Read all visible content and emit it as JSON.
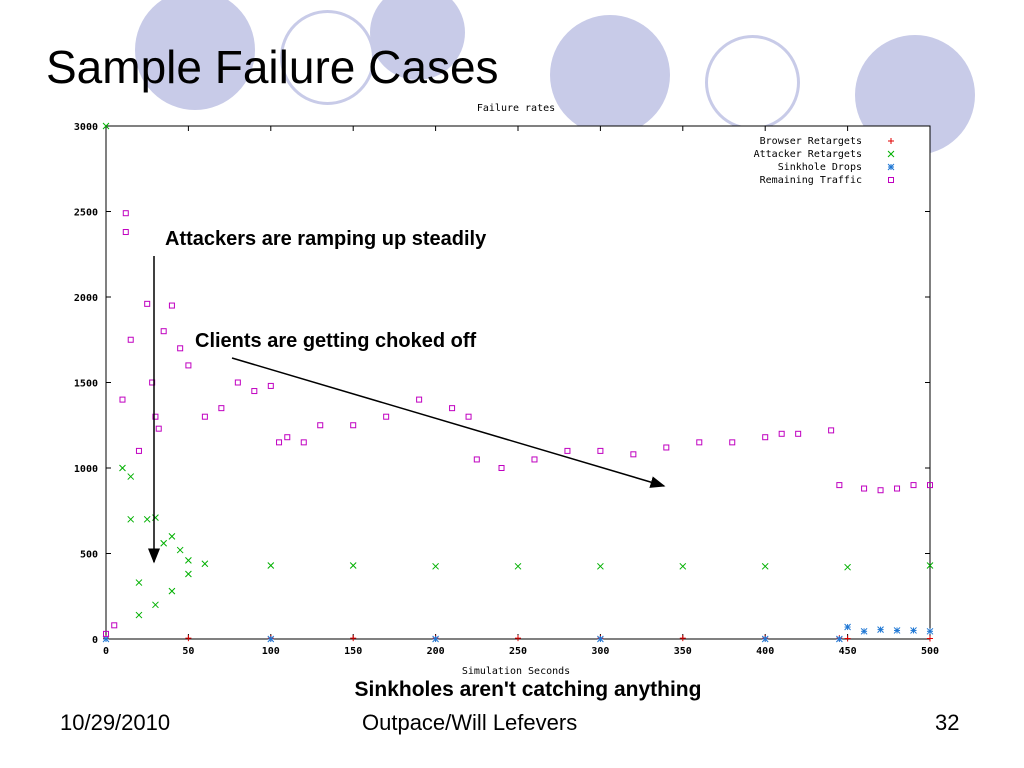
{
  "slide": {
    "title": "Sample Failure Cases",
    "footer_date": "10/29/2010",
    "footer_center": "Outpace/Will Lefevers",
    "footer_page": "32",
    "accent_color": "#c8cbe8"
  },
  "chart_data": {
    "type": "scatter",
    "title": "Failure rates",
    "xlabel": "Simulation Seconds",
    "ylabel": "",
    "xlim": [
      0,
      500
    ],
    "ylim": [
      0,
      3000
    ],
    "xticks": [
      0,
      50,
      100,
      150,
      200,
      250,
      300,
      350,
      400,
      450,
      500
    ],
    "yticks": [
      0,
      500,
      1000,
      1500,
      2000,
      2500,
      3000
    ],
    "legend_position": "top-right",
    "grid": false,
    "series": [
      {
        "name": "Browser Retargets",
        "marker": "+",
        "color": "#e00000",
        "points": [
          [
            0,
            5
          ],
          [
            50,
            5
          ],
          [
            100,
            5
          ],
          [
            150,
            5
          ],
          [
            200,
            5
          ],
          [
            250,
            5
          ],
          [
            300,
            5
          ],
          [
            350,
            5
          ],
          [
            400,
            5
          ],
          [
            445,
            5
          ],
          [
            450,
            3
          ],
          [
            500,
            3
          ]
        ]
      },
      {
        "name": "Attacker Retargets",
        "marker": "x",
        "color": "#00b000",
        "points": [
          [
            0,
            3000
          ],
          [
            10,
            1000
          ],
          [
            15,
            950
          ],
          [
            15,
            700
          ],
          [
            20,
            330
          ],
          [
            25,
            700
          ],
          [
            30,
            710
          ],
          [
            35,
            560
          ],
          [
            40,
            600
          ],
          [
            45,
            520
          ],
          [
            50,
            460
          ],
          [
            60,
            440
          ],
          [
            100,
            430
          ],
          [
            150,
            430
          ],
          [
            200,
            425
          ],
          [
            250,
            425
          ],
          [
            300,
            425
          ],
          [
            350,
            425
          ],
          [
            400,
            425
          ],
          [
            450,
            420
          ],
          [
            500,
            430
          ],
          [
            20,
            140
          ],
          [
            30,
            200
          ],
          [
            40,
            280
          ],
          [
            50,
            380
          ]
        ]
      },
      {
        "name": "Sinkhole Drops",
        "marker": "*",
        "color": "#1f77d4",
        "points": [
          [
            0,
            0
          ],
          [
            100,
            0
          ],
          [
            200,
            0
          ],
          [
            300,
            0
          ],
          [
            400,
            0
          ],
          [
            445,
            0
          ],
          [
            450,
            70
          ],
          [
            460,
            45
          ],
          [
            470,
            55
          ],
          [
            480,
            50
          ],
          [
            490,
            50
          ],
          [
            500,
            45
          ]
        ]
      },
      {
        "name": "Remaining Traffic",
        "marker": "square",
        "color": "#c000c0",
        "points": [
          [
            0,
            30
          ],
          [
            5,
            80
          ],
          [
            10,
            1400
          ],
          [
            12,
            2490
          ],
          [
            12,
            2380
          ],
          [
            15,
            1750
          ],
          [
            20,
            1100
          ],
          [
            25,
            1960
          ],
          [
            28,
            1500
          ],
          [
            30,
            1300
          ],
          [
            32,
            1230
          ],
          [
            35,
            1800
          ],
          [
            40,
            1950
          ],
          [
            45,
            1700
          ],
          [
            50,
            1600
          ],
          [
            60,
            1300
          ],
          [
            70,
            1350
          ],
          [
            80,
            1500
          ],
          [
            90,
            1450
          ],
          [
            100,
            1480
          ],
          [
            105,
            1150
          ],
          [
            110,
            1180
          ],
          [
            120,
            1150
          ],
          [
            130,
            1250
          ],
          [
            150,
            1250
          ],
          [
            170,
            1300
          ],
          [
            190,
            1400
          ],
          [
            210,
            1350
          ],
          [
            220,
            1300
          ],
          [
            225,
            1050
          ],
          [
            240,
            1000
          ],
          [
            260,
            1050
          ],
          [
            280,
            1100
          ],
          [
            300,
            1100
          ],
          [
            320,
            1080
          ],
          [
            340,
            1120
          ],
          [
            360,
            1150
          ],
          [
            380,
            1150
          ],
          [
            400,
            1180
          ],
          [
            410,
            1200
          ],
          [
            420,
            1200
          ],
          [
            440,
            1220
          ],
          [
            445,
            900
          ],
          [
            460,
            880
          ],
          [
            470,
            870
          ],
          [
            480,
            880
          ],
          [
            490,
            900
          ],
          [
            500,
            900
          ]
        ]
      }
    ],
    "annotations": [
      "Attackers are ramping up steadily",
      "Clients are getting choked off",
      "Sinkholes aren't catching anything"
    ]
  }
}
